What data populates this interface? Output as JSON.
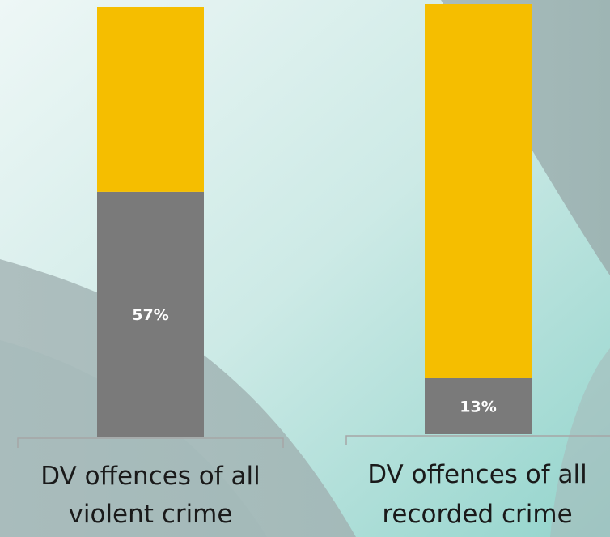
{
  "colors": {
    "background_light": "#eaf5f4",
    "background_mid": "#cdeae6",
    "background_teal": "#8fd3cb",
    "swoosh_grey": "#a9bdbd",
    "swoosh_dark": "#9ab0b0",
    "domestic_violence": "#7a7a7a",
    "other_crime": "#f5be00",
    "bracket": "#a6a6a6"
  },
  "chart_data": {
    "type": "bar",
    "stacked": true,
    "ylim": [
      0,
      100
    ],
    "categories": [
      [
        "DV offences of all",
        "violent crime"
      ],
      [
        "DV offences of all",
        "recorded crime"
      ]
    ],
    "series": [
      {
        "values": [
          57,
          13
        ],
        "labels": [
          "57%",
          "13%"
        ],
        "color": "#7a7a7a"
      },
      {
        "values": [
          43,
          87
        ],
        "color": "#f5be00"
      }
    ],
    "legend": "none",
    "grid": false
  }
}
